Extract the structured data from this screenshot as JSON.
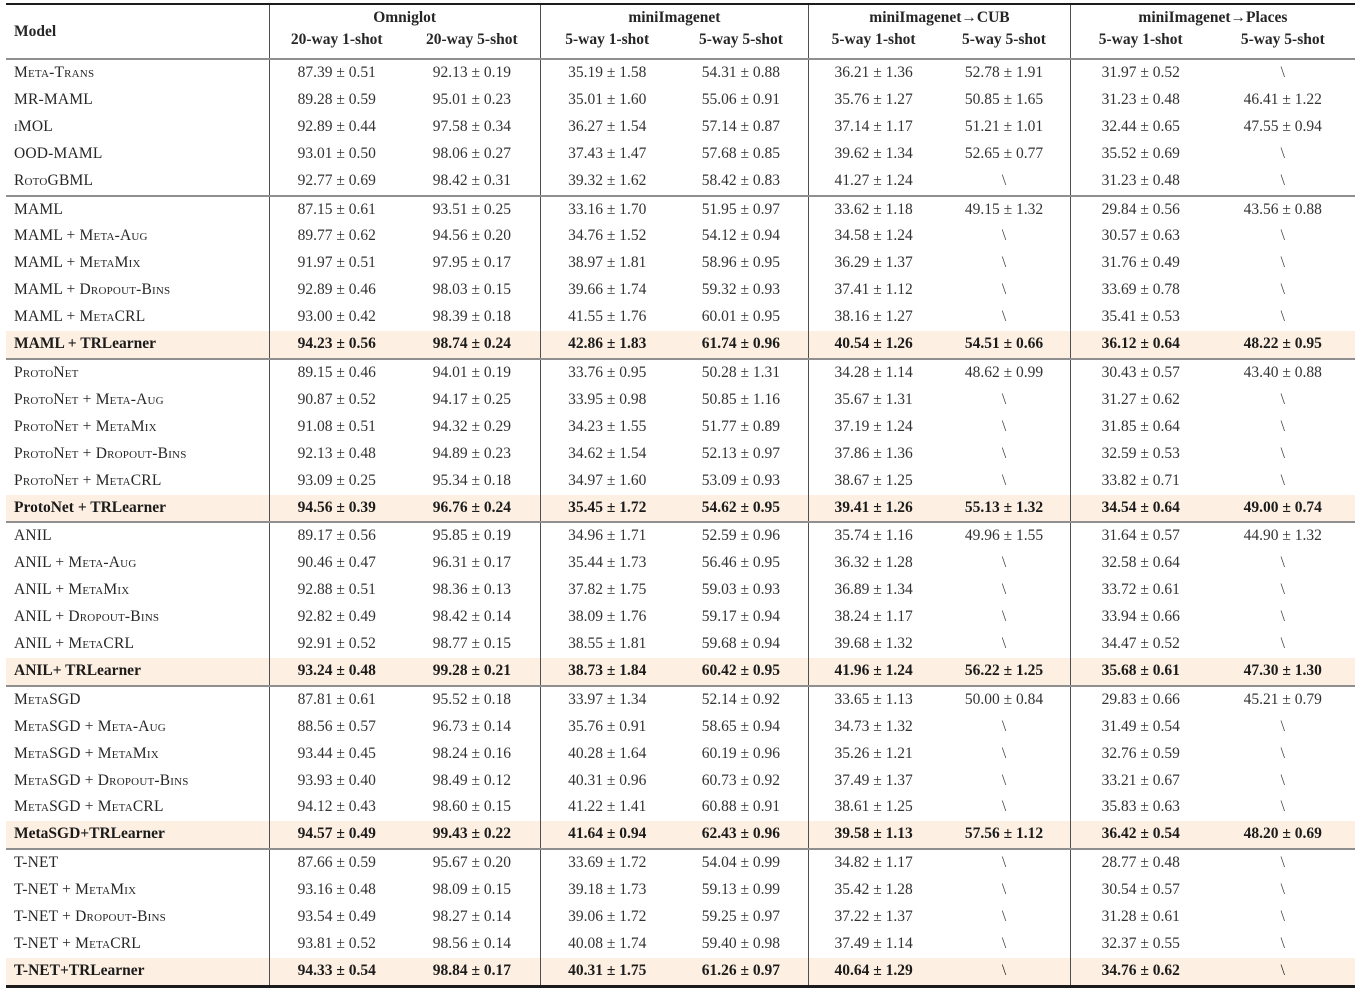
{
  "table": {
    "header": {
      "model_label": "Model",
      "groups": [
        {
          "label": "Omniglot",
          "subs": [
            "20-way 1-shot",
            "20-way 5-shot"
          ]
        },
        {
          "label": "miniImagenet",
          "subs": [
            "5-way 1-shot",
            "5-way 5-shot"
          ]
        },
        {
          "label": "miniImagenet→CUB",
          "subs": [
            "5-way 1-shot",
            "5-way 5-shot"
          ]
        },
        {
          "label": "miniImagenet→Places",
          "subs": [
            "5-way 1-shot",
            "5-way 5-shot"
          ]
        }
      ]
    },
    "colors": {
      "highlight": "#fdf0e2",
      "rule_dark": "#1c1c1c",
      "rule_gray": "#8f8f8f",
      "text": "#262626"
    },
    "groups": [
      {
        "rows": [
          {
            "model": "Meta-Trans",
            "bold": false,
            "highlight": false,
            "values": [
              "87.39 ± 0.51",
              "92.13 ± 0.19",
              "35.19 ± 1.58",
              "54.31 ± 0.88",
              "36.21 ± 1.36",
              "52.78 ± 1.91",
              "31.97 ± 0.52",
              "\\"
            ]
          },
          {
            "model": "MR-MAML",
            "bold": false,
            "highlight": false,
            "values": [
              "89.28 ± 0.59",
              "95.01 ± 0.23",
              "35.01 ± 1.60",
              "55.06 ± 0.91",
              "35.76 ± 1.27",
              "50.85 ± 1.65",
              "31.23 ± 0.48",
              "46.41 ± 1.22"
            ]
          },
          {
            "model": "iMOL",
            "bold": false,
            "highlight": false,
            "values": [
              "92.89 ± 0.44",
              "97.58 ± 0.34",
              "36.27 ± 1.54",
              "57.14 ± 0.87",
              "37.14 ± 1.17",
              "51.21 ± 1.01",
              "32.44 ± 0.65",
              "47.55 ± 0.94"
            ]
          },
          {
            "model": "OOD-MAML",
            "bold": false,
            "highlight": false,
            "values": [
              "93.01 ± 0.50",
              "98.06 ± 0.27",
              "37.43 ± 1.47",
              "57.68 ± 0.85",
              "39.62 ± 1.34",
              "52.65 ± 0.77",
              "35.52 ± 0.69",
              "\\"
            ]
          },
          {
            "model": "RotoGBML",
            "bold": false,
            "highlight": false,
            "values": [
              "92.77 ± 0.69",
              "98.42 ± 0.31",
              "39.32 ± 1.62",
              "58.42 ± 0.83",
              "41.27 ± 1.24",
              "\\",
              "31.23 ± 0.48",
              "\\"
            ]
          }
        ]
      },
      {
        "rows": [
          {
            "model": "MAML",
            "bold": false,
            "highlight": false,
            "values": [
              "87.15 ± 0.61",
              "93.51 ± 0.25",
              "33.16 ± 1.70",
              "51.95 ± 0.97",
              "33.62 ± 1.18",
              "49.15 ± 1.32",
              "29.84 ± 0.56",
              "43.56 ± 0.88"
            ]
          },
          {
            "model": "MAML + Meta-Aug",
            "bold": false,
            "highlight": false,
            "values": [
              "89.77 ± 0.62",
              "94.56 ± 0.20",
              "34.76 ± 1.52",
              "54.12 ± 0.94",
              "34.58 ± 1.24",
              "\\",
              "30.57 ± 0.63",
              "\\"
            ]
          },
          {
            "model": "MAML + MetaMix",
            "bold": false,
            "highlight": false,
            "values": [
              "91.97 ± 0.51",
              "97.95 ± 0.17",
              "38.97 ± 1.81",
              "58.96 ± 0.95",
              "36.29 ± 1.37",
              "\\",
              "31.76 ± 0.49",
              "\\"
            ]
          },
          {
            "model": "MAML + Dropout-Bins",
            "bold": false,
            "highlight": false,
            "values": [
              "92.89 ± 0.46",
              "98.03 ± 0.15",
              "39.66 ± 1.74",
              "59.32 ± 0.93",
              "37.41 ± 1.12",
              "\\",
              "33.69 ± 0.78",
              "\\"
            ]
          },
          {
            "model": "MAML + MetaCRL",
            "bold": false,
            "highlight": false,
            "values": [
              "93.00 ± 0.42",
              "98.39 ± 0.18",
              "41.55 ± 1.76",
              "60.01 ± 0.95",
              "38.16 ± 1.27",
              "\\",
              "35.41 ± 0.53",
              "\\"
            ]
          },
          {
            "model": "MAML + TRLearner",
            "bold": true,
            "highlight": true,
            "values": [
              "94.23 ± 0.56",
              "98.74 ± 0.24",
              "42.86 ± 1.83",
              "61.74 ± 0.96",
              "40.54 ± 1.26",
              "54.51 ± 0.66",
              "36.12 ± 0.64",
              "48.22 ± 0.95"
            ]
          }
        ]
      },
      {
        "rows": [
          {
            "model": "ProtoNet",
            "bold": false,
            "highlight": false,
            "values": [
              "89.15 ± 0.46",
              "94.01 ± 0.19",
              "33.76 ± 0.95",
              "50.28 ± 1.31",
              "34.28 ± 1.14",
              "48.62 ± 0.99",
              "30.43 ± 0.57",
              "43.40 ± 0.88"
            ]
          },
          {
            "model": "ProtoNet + Meta-Aug",
            "bold": false,
            "highlight": false,
            "values": [
              "90.87 ± 0.52",
              "94.17 ± 0.25",
              "33.95 ± 0.98",
              "50.85 ± 1.16",
              "35.67 ± 1.31",
              "\\",
              "31.27 ± 0.62",
              "\\"
            ]
          },
          {
            "model": "ProtoNet + MetaMix",
            "bold": false,
            "highlight": false,
            "values": [
              "91.08 ± 0.51",
              "94.32 ± 0.29",
              "34.23 ± 1.55",
              "51.77 ± 0.89",
              "37.19 ± 1.24",
              "\\",
              "31.85 ± 0.64",
              "\\"
            ]
          },
          {
            "model": "ProtoNet + Dropout-Bins",
            "bold": false,
            "highlight": false,
            "values": [
              "92.13 ± 0.48",
              "94.89 ± 0.23",
              "34.62 ± 1.54",
              "52.13 ± 0.97",
              "37.86 ± 1.36",
              "\\",
              "32.59 ± 0.53",
              "\\"
            ]
          },
          {
            "model": "ProtoNet + MetaCRL",
            "bold": false,
            "highlight": false,
            "values": [
              "93.09 ± 0.25",
              "95.34 ± 0.18",
              "34.97 ± 1.60",
              "53.09 ± 0.93",
              "38.67 ± 1.25",
              "\\",
              "33.82 ± 0.71",
              "\\"
            ]
          },
          {
            "model": "ProtoNet + TRLearner",
            "bold": true,
            "highlight": true,
            "values": [
              "94.56 ± 0.39",
              "96.76 ± 0.24",
              "35.45 ± 1.72",
              "54.62 ± 0.95",
              "39.41 ± 1.26",
              "55.13 ± 1.32",
              "34.54 ± 0.64",
              "49.00 ± 0.74"
            ]
          }
        ]
      },
      {
        "rows": [
          {
            "model": "ANIL",
            "bold": false,
            "highlight": false,
            "values": [
              "89.17 ± 0.56",
              "95.85 ± 0.19",
              "34.96 ± 1.71",
              "52.59 ± 0.96",
              "35.74 ± 1.16",
              "49.96 ± 1.55",
              "31.64 ± 0.57",
              "44.90 ± 1.32"
            ]
          },
          {
            "model": "ANIL + Meta-Aug",
            "bold": false,
            "highlight": false,
            "values": [
              "90.46 ± 0.47",
              "96.31 ± 0.17",
              "35.44 ± 1.73",
              "56.46 ± 0.95",
              "36.32 ± 1.28",
              "\\",
              "32.58 ± 0.64",
              "\\"
            ]
          },
          {
            "model": "ANIL + MetaMix",
            "bold": false,
            "highlight": false,
            "values": [
              "92.88 ± 0.51",
              "98.36 ± 0.13",
              "37.82 ± 1.75",
              "59.03 ± 0.93",
              "36.89 ± 1.34",
              "\\",
              "33.72 ± 0.61",
              "\\"
            ]
          },
          {
            "model": "ANIL + Dropout-Bins",
            "bold": false,
            "highlight": false,
            "values": [
              "92.82 ± 0.49",
              "98.42 ± 0.14",
              "38.09 ± 1.76",
              "59.17 ± 0.94",
              "38.24 ± 1.17",
              "\\",
              "33.94 ± 0.66",
              "\\"
            ]
          },
          {
            "model": "ANIL + MetaCRL",
            "bold": false,
            "highlight": false,
            "values": [
              "92.91 ± 0.52",
              "98.77 ± 0.15",
              "38.55 ± 1.81",
              "59.68 ± 0.94",
              "39.68 ± 1.32",
              "\\",
              "34.47 ± 0.52",
              "\\"
            ]
          },
          {
            "model": "ANIL+ TRLearner",
            "bold": true,
            "highlight": true,
            "values": [
              "93.24 ± 0.48",
              "99.28 ± 0.21",
              "38.73 ± 1.84",
              "60.42 ± 0.95",
              "41.96 ± 1.24",
              "56.22 ± 1.25",
              "35.68 ± 0.61",
              "47.30 ± 1.30"
            ]
          }
        ]
      },
      {
        "rows": [
          {
            "model": "MetaSGD",
            "bold": false,
            "highlight": false,
            "values": [
              "87.81 ± 0.61",
              "95.52 ± 0.18",
              "33.97 ± 1.34",
              "52.14 ± 0.92",
              "33.65 ± 1.13",
              "50.00 ± 0.84",
              "29.83 ± 0.66",
              "45.21 ± 0.79"
            ]
          },
          {
            "model": "MetaSGD + Meta-Aug",
            "bold": false,
            "highlight": false,
            "values": [
              "88.56 ± 0.57",
              "96.73 ± 0.14",
              "35.76 ± 0.91",
              "58.65 ± 0.94",
              "34.73 ± 1.32",
              "\\",
              "31.49 ± 0.54",
              "\\"
            ]
          },
          {
            "model": "MetaSGD + MetaMix",
            "bold": false,
            "highlight": false,
            "values": [
              "93.44 ± 0.45",
              "98.24 ± 0.16",
              "40.28 ± 1.64",
              "60.19 ± 0.96",
              "35.26 ± 1.21",
              "\\",
              "32.76 ± 0.59",
              "\\"
            ]
          },
          {
            "model": "MetaSGD + Dropout-Bins",
            "bold": false,
            "highlight": false,
            "values": [
              "93.93 ± 0.40",
              "98.49 ± 0.12",
              "40.31 ± 0.96",
              "60.73 ± 0.92",
              "37.49 ± 1.37",
              "\\",
              "33.21 ± 0.67",
              "\\"
            ]
          },
          {
            "model": "MetaSGD + MetaCRL",
            "bold": false,
            "highlight": false,
            "values": [
              "94.12 ± 0.43",
              "98.60 ± 0.15",
              "41.22 ± 1.41",
              "60.88 ± 0.91",
              "38.61 ± 1.25",
              "\\",
              "35.83 ± 0.63",
              "\\"
            ]
          },
          {
            "model": "MetaSGD+TRLearner",
            "bold": true,
            "highlight": true,
            "values": [
              "94.57 ± 0.49",
              "99.43 ± 0.22",
              "41.64 ± 0.94",
              "62.43 ± 0.96",
              "39.58 ± 1.13",
              "57.56 ± 1.12",
              "36.42 ± 0.54",
              "48.20 ± 0.69"
            ]
          }
        ]
      },
      {
        "rows": [
          {
            "model": "T-NET",
            "bold": false,
            "highlight": false,
            "values": [
              "87.66 ± 0.59",
              "95.67 ± 0.20",
              "33.69 ± 1.72",
              "54.04 ± 0.99",
              "34.82 ± 1.17",
              "\\",
              "28.77 ± 0.48",
              "\\"
            ]
          },
          {
            "model": "T-NET + MetaMix",
            "bold": false,
            "highlight": false,
            "values": [
              "93.16 ± 0.48",
              "98.09 ± 0.15",
              "39.18 ± 1.73",
              "59.13 ± 0.99",
              "35.42 ± 1.28",
              "\\",
              "30.54 ± 0.57",
              "\\"
            ]
          },
          {
            "model": "T-NET + Dropout-Bins",
            "bold": false,
            "highlight": false,
            "values": [
              "93.54 ± 0.49",
              "98.27 ± 0.14",
              "39.06 ± 1.72",
              "59.25 ± 0.97",
              "37.22 ± 1.37",
              "\\",
              "31.28 ± 0.61",
              "\\"
            ]
          },
          {
            "model": "T-NET + MetaCRL",
            "bold": false,
            "highlight": false,
            "values": [
              "93.81 ± 0.52",
              "98.56 ± 0.14",
              "40.08 ± 1.74",
              "59.40 ± 0.98",
              "37.49 ± 1.14",
              "\\",
              "32.37 ± 0.55",
              "\\"
            ]
          },
          {
            "model": "T-NET+TRLearner",
            "bold": true,
            "highlight": true,
            "values": [
              "94.33 ± 0.54",
              "98.84 ± 0.17",
              "40.31 ± 1.75",
              "61.26 ± 0.97",
              "40.64 ± 1.29",
              "\\",
              "34.76 ± 0.62",
              "\\"
            ]
          }
        ]
      }
    ]
  }
}
